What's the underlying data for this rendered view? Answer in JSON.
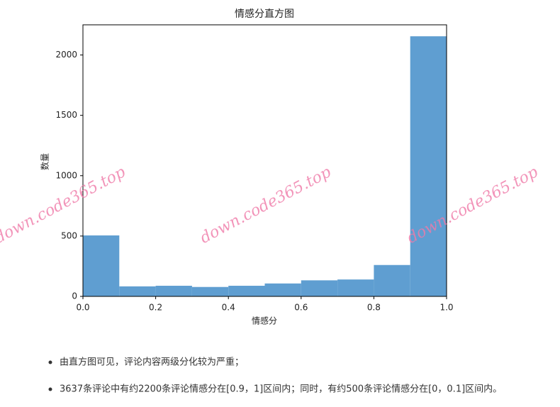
{
  "chart_data": {
    "type": "histogram",
    "title": "情感分直方图",
    "x_label": "情感分",
    "y_label": "数量",
    "bins": [
      0,
      0.1,
      0.2,
      0.3,
      0.4,
      0.5,
      0.6,
      0.7,
      0.8,
      0.9,
      1.0
    ],
    "values": [
      505,
      83,
      88,
      78,
      88,
      107,
      133,
      140,
      260,
      2155
    ],
    "color": "#5f9ed1",
    "xlim": [
      0,
      1.0
    ],
    "xticks": [
      {
        "value": 0,
        "label": "0.0"
      },
      0.2,
      0.4,
      0.6,
      0.8,
      {
        "value": 1.0,
        "label": "1.0"
      }
    ],
    "ylim": [
      0,
      2250
    ],
    "yticks": [
      0,
      500,
      1000,
      1500,
      2000
    ],
    "grid": false
  },
  "bullets": [
    "由直方图可见，评论内容两级分化较为严重；",
    "3637条评论中有约2200条评论情感分在[0.9，1]区间内；同时，有约500条评论情感分在[0，0.1]区间内。"
  ],
  "watermarks": [
    "down.code365.top",
    "down.code365.top",
    "down.code365.top"
  ]
}
